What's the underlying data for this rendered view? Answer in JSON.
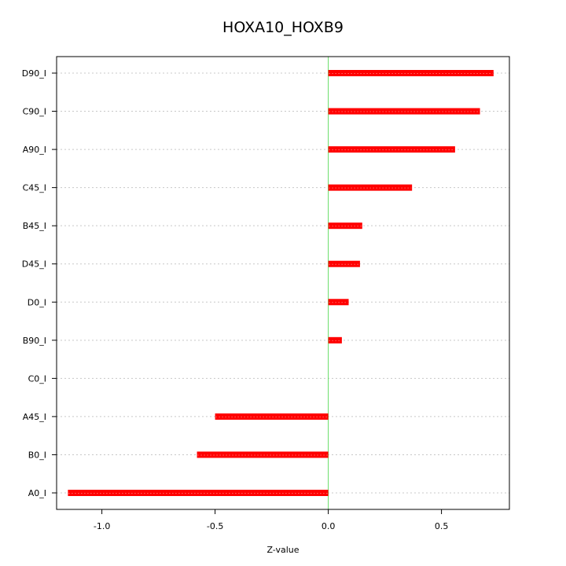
{
  "chart_data": {
    "type": "bar",
    "orientation": "horizontal",
    "title": "HOXA10_HOXB9",
    "xlabel": "Z-value",
    "ylabel": "",
    "xlim": [
      -1.2,
      0.8
    ],
    "xticks": [
      -1.0,
      -0.5,
      0.0,
      0.5
    ],
    "xtick_labels": [
      "-1.0",
      "-0.5",
      "0.0",
      "0.5"
    ],
    "grid": "horizontal dotted",
    "reference_line": {
      "x": 0,
      "color": "#66dd66"
    },
    "bar_color": "#ff0000",
    "categories": [
      "D90_I",
      "C90_I",
      "A90_I",
      "C45_I",
      "B45_I",
      "D45_I",
      "D0_I",
      "B90_I",
      "C0_I",
      "A45_I",
      "B0_I",
      "A0_I"
    ],
    "values": [
      0.73,
      0.67,
      0.56,
      0.37,
      0.15,
      0.14,
      0.09,
      0.06,
      0.0,
      -0.5,
      -0.58,
      -1.15
    ]
  }
}
